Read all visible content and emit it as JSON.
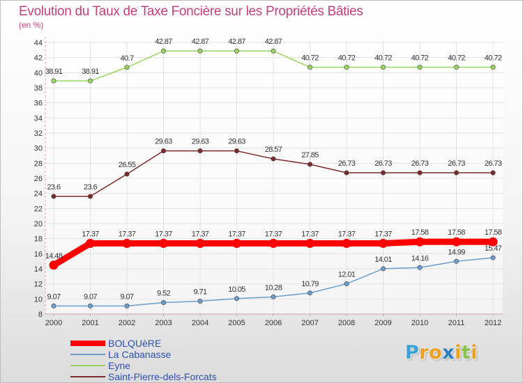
{
  "chart_data": {
    "type": "line",
    "title": "Evolution du Taux de Taxe Foncière sur les Propriétés Bâties",
    "ylabel": "(en %)",
    "xlabel": "",
    "ylim": [
      8,
      44
    ],
    "y_ticks": [
      8,
      10,
      12,
      14,
      16,
      18,
      20,
      22,
      24,
      26,
      28,
      30,
      32,
      34,
      36,
      38,
      40,
      42,
      44
    ],
    "categories": [
      "2000",
      "2001",
      "2002",
      "2003",
      "2004",
      "2005",
      "2006",
      "2007",
      "2008",
      "2009",
      "2010",
      "2011",
      "2012"
    ],
    "series": [
      {
        "name": "BOLQUèRE",
        "color": "#ff0000",
        "values": [
          14.48,
          17.37,
          17.37,
          17.37,
          17.37,
          17.37,
          17.37,
          17.37,
          17.37,
          17.37,
          17.58,
          17.58,
          17.58
        ],
        "labels": [
          "14.48",
          "17.37",
          "17.37",
          "17.37",
          "17.37",
          "17.37",
          "17.37",
          "17.37",
          "17.37",
          "17.37",
          "17.58",
          "17.58",
          "17.58"
        ]
      },
      {
        "name": "La Cabanasse",
        "color": "#6b9dcb",
        "values": [
          9.07,
          9.07,
          9.07,
          9.52,
          9.71,
          10.05,
          10.28,
          10.79,
          12.01,
          14.01,
          14.16,
          14.99,
          15.47
        ],
        "labels": [
          "9.07",
          "9.07",
          "9.07",
          "9.52",
          "9.71",
          "10.05",
          "10.28",
          "10.79",
          "12.01",
          "14.01",
          "14.16",
          "14.99",
          "15.47"
        ]
      },
      {
        "name": "Eyne",
        "color": "#99d463",
        "values": [
          38.91,
          38.91,
          40.7,
          42.87,
          42.87,
          42.87,
          42.87,
          40.72,
          40.72,
          40.72,
          40.72,
          40.72,
          40.72
        ],
        "labels": [
          "38.91",
          "38.91",
          "40.7",
          "42.87",
          "42.87",
          "42.87",
          "42.87",
          "40.72",
          "40.72",
          "40.72",
          "40.72",
          "40.72",
          "40.72"
        ]
      },
      {
        "name": "Saint-Pierre-dels-Forcats",
        "color": "#7b2a2a",
        "values": [
          23.6,
          23.6,
          26.55,
          29.63,
          29.63,
          29.63,
          28.57,
          27.85,
          26.73,
          26.73,
          26.73,
          26.73,
          26.73
        ],
        "labels": [
          "23.6",
          "23.6",
          "26.55",
          "29.63",
          "29.63",
          "29.63",
          "28.57",
          "27.85",
          "26.73",
          "26.73",
          "26.73",
          "26.73",
          "26.73"
        ]
      }
    ],
    "legend": [
      "BOLQUèRE",
      "La Cabanasse",
      "Eyne",
      "Saint-Pierre-dels-Forcats"
    ],
    "legend_position": "bottom-left"
  },
  "logo": {
    "letters": [
      "P",
      "r",
      "o",
      "x",
      "i",
      "t",
      "i"
    ],
    "colors": [
      "#3aa0d8",
      "#f0a020",
      "#f0a020",
      "#2a7fc0",
      "#f0a020",
      "#8bc34a",
      "#f0a020"
    ]
  }
}
